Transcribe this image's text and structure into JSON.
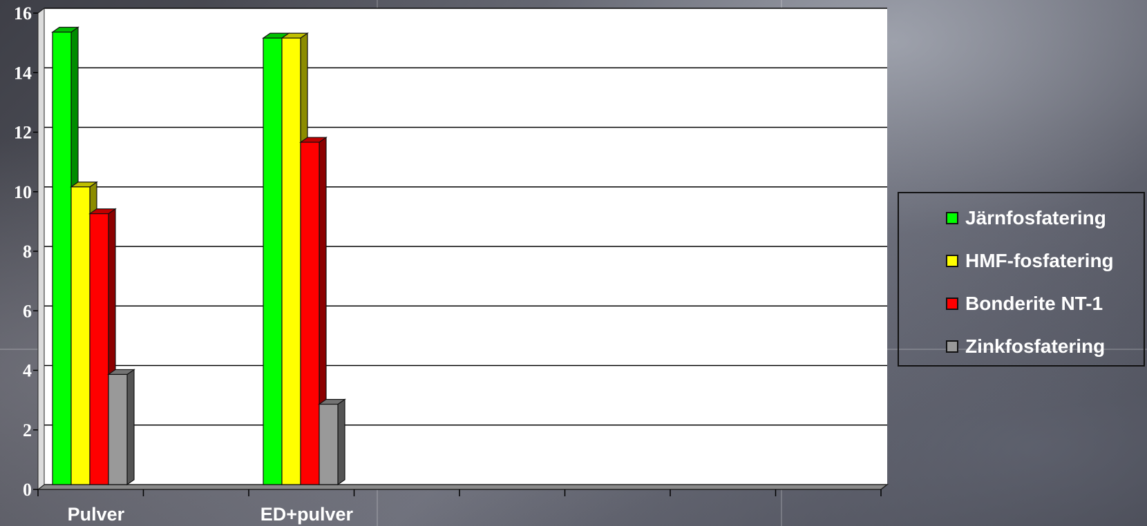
{
  "chart_data": {
    "type": "bar",
    "categories": [
      "Pulver",
      "ED+pulver"
    ],
    "series": [
      {
        "name": "Järnfosfatering",
        "values": [
          15.2,
          15.0
        ],
        "color": "#00ff00"
      },
      {
        "name": "HMF-fosfatering",
        "values": [
          10.0,
          15.0
        ],
        "color": "#ffff00"
      },
      {
        "name": "Bonderite NT-1",
        "values": [
          9.1,
          11.5
        ],
        "color": "#ff0000"
      },
      {
        "name": "Zinkfosfatering",
        "values": [
          3.7,
          2.7
        ],
        "color": "#999999"
      }
    ],
    "yticks": [
      "0",
      "2",
      "4",
      "6",
      "8",
      "10",
      "12",
      "14",
      "16"
    ],
    "ylim": [
      0,
      16
    ],
    "grid": true,
    "legend_position": "right"
  }
}
